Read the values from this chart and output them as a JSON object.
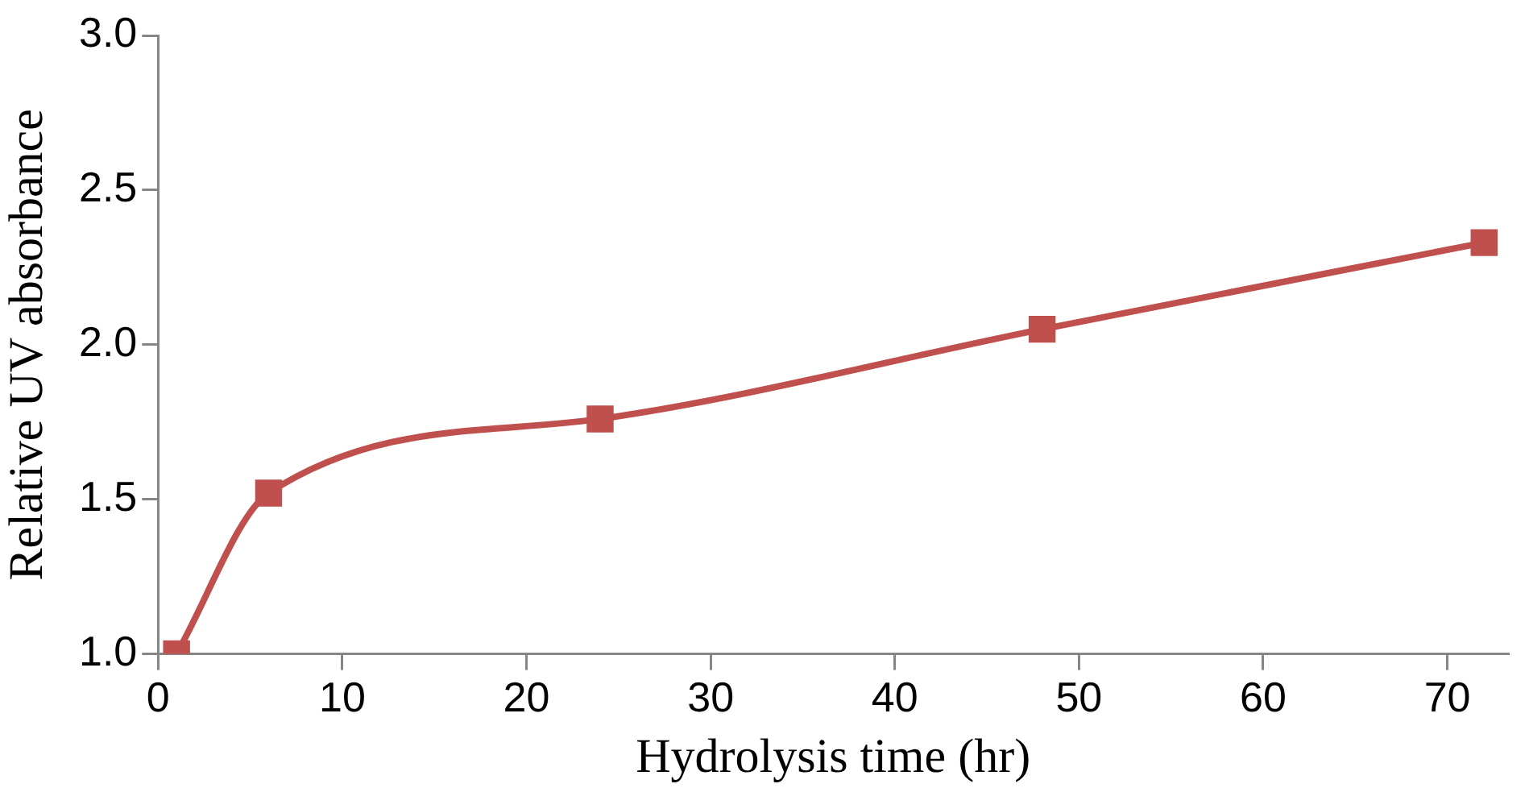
{
  "chart_data": {
    "type": "line",
    "xlabel": "Hydrolysis time (hr)",
    "ylabel": "Relative UV absorbance",
    "x": [
      1,
      6,
      24,
      48,
      72
    ],
    "series": [
      {
        "color": "#c0504d",
        "values": [
          1.0,
          1.52,
          1.76,
          2.05,
          2.33
        ]
      }
    ],
    "xlim": [
      0,
      73.3
    ],
    "xticks": [
      0,
      10,
      20,
      30,
      40,
      50,
      60,
      70
    ],
    "ylim": [
      1.0,
      3.0
    ],
    "yticks": [
      {
        "value": 1.0,
        "label": "1.0"
      },
      {
        "value": 1.5,
        "label": "1.5"
      },
      {
        "value": 2.0,
        "label": "2.0"
      },
      {
        "value": 2.5,
        "label": "2.5"
      },
      {
        "value": 3.0,
        "label": "3.0"
      }
    ],
    "grid": false,
    "legend": false,
    "marker": "square",
    "line_style": "solid"
  }
}
